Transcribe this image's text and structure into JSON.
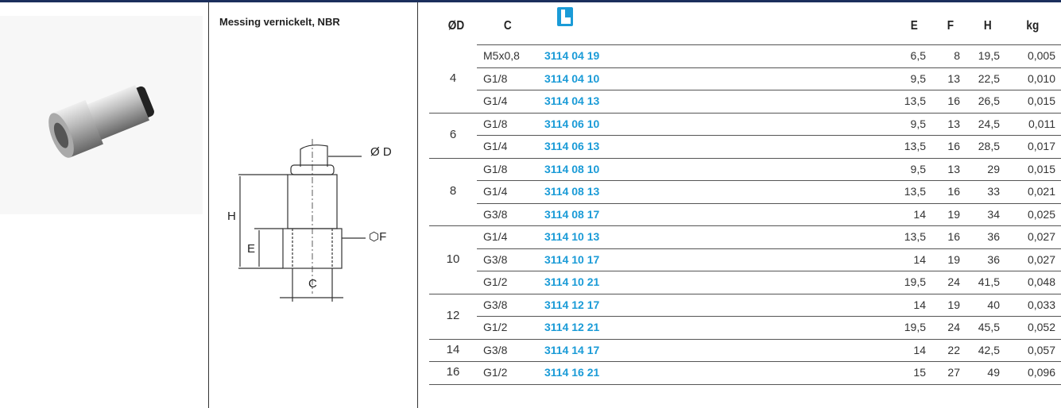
{
  "material": "Messing vernickelt, NBR",
  "diagram": {
    "od": "Ø D",
    "h": "H",
    "e": "E",
    "f": "⬡F",
    "c": "C"
  },
  "table": {
    "header": {
      "od": "ØD",
      "c": "C",
      "e": "E",
      "f": "F",
      "h": "H",
      "kg": "kg"
    },
    "groups": [
      {
        "od": "4",
        "rows": [
          [
            "M5x0,8",
            "3114 04 19",
            "6,5",
            "8",
            "19,5",
            "0,005"
          ],
          [
            "G1/8",
            "3114 04 10",
            "9,5",
            "13",
            "22,5",
            "0,010"
          ],
          [
            "G1/4",
            "3114 04 13",
            "13,5",
            "16",
            "26,5",
            "0,015"
          ]
        ]
      },
      {
        "od": "6",
        "rows": [
          [
            "G1/8",
            "3114 06 10",
            "9,5",
            "13",
            "24,5",
            "0,011"
          ],
          [
            "G1/4",
            "3114 06 13",
            "13,5",
            "16",
            "28,5",
            "0,017"
          ]
        ]
      },
      {
        "od": "8",
        "rows": [
          [
            "G1/8",
            "3114 08 10",
            "9,5",
            "13",
            "29",
            "0,015"
          ],
          [
            "G1/4",
            "3114 08 13",
            "13,5",
            "16",
            "33",
            "0,021"
          ],
          [
            "G3/8",
            "3114 08 17",
            "14",
            "19",
            "34",
            "0,025"
          ]
        ]
      },
      {
        "od": "10",
        "rows": [
          [
            "G1/4",
            "3114 10 13",
            "13,5",
            "16",
            "36",
            "0,027"
          ],
          [
            "G3/8",
            "3114 10 17",
            "14",
            "19",
            "36",
            "0,027"
          ],
          [
            "G1/2",
            "3114 10 21",
            "19,5",
            "24",
            "41,5",
            "0,048"
          ]
        ]
      },
      {
        "od": "12",
        "rows": [
          [
            "G3/8",
            "3114 12 17",
            "14",
            "19",
            "40",
            "0,033"
          ],
          [
            "G1/2",
            "3114 12 21",
            "19,5",
            "24",
            "45,5",
            "0,052"
          ]
        ]
      },
      {
        "od": "14",
        "rows": [
          [
            "G3/8",
            "3114 14 17",
            "14",
            "22",
            "42,5",
            "0,057"
          ]
        ]
      },
      {
        "od": "16",
        "rows": [
          [
            "G1/2",
            "3114 16 21",
            "15",
            "27",
            "49",
            "0,096"
          ]
        ]
      }
    ]
  }
}
